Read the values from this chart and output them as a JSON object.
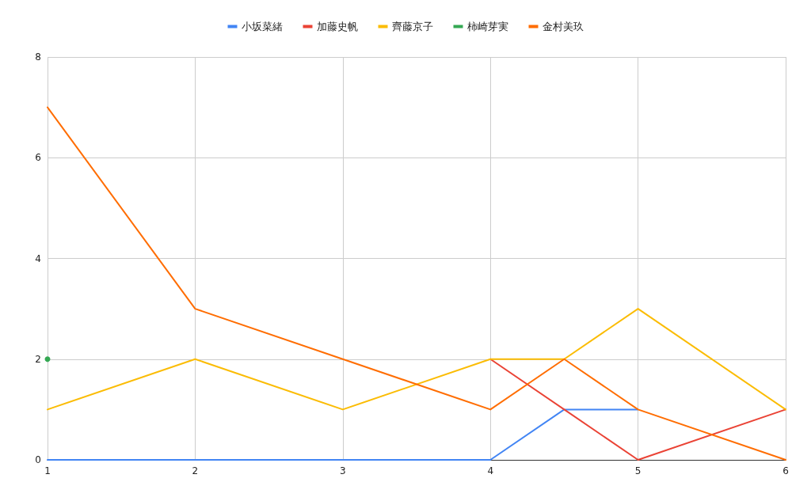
{
  "chart_data": {
    "type": "line",
    "xlim": [
      1,
      6
    ],
    "xticks": [
      1,
      2,
      3,
      4,
      5,
      6
    ],
    "ylim": [
      0,
      8
    ],
    "yticks": [
      0,
      2,
      4,
      6,
      8
    ],
    "grid": true,
    "legend": "top",
    "marker": "none",
    "series": [
      {
        "name": "小坂菜緒",
        "color": "#4285f4",
        "x": [
          1,
          2,
          3,
          4,
          4.5,
          5
        ],
        "values": [
          0,
          0,
          0,
          0,
          1,
          1
        ]
      },
      {
        "name": "加藤史帆",
        "color": "#ea4335",
        "x": [
          4,
          4.5,
          5,
          6
        ],
        "values": [
          2,
          1,
          0,
          1
        ]
      },
      {
        "name": "齊藤京子",
        "color": "#fbbc04",
        "x": [
          1,
          2,
          3,
          4,
          4.5,
          5,
          6
        ],
        "values": [
          1,
          2,
          1,
          2,
          2,
          3,
          1
        ]
      },
      {
        "name": "柿崎芽実",
        "color": "#34a853",
        "x": [
          1
        ],
        "values": [
          2
        ],
        "marker": "circle"
      },
      {
        "name": "金村美玖",
        "color": "#ff6d01",
        "x": [
          1,
          2,
          3,
          4,
          4.5,
          5,
          6
        ],
        "values": [
          7,
          3,
          2,
          1,
          2,
          1,
          0
        ]
      }
    ]
  }
}
